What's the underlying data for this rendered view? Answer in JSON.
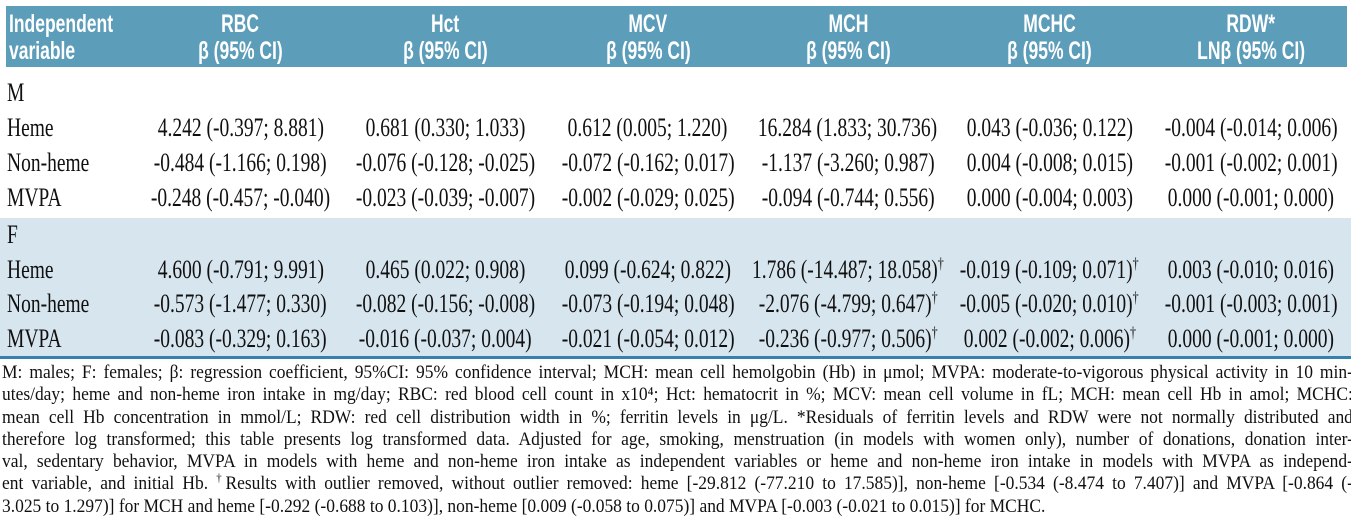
{
  "colors": {
    "header_bg": "#5C9DBA",
    "header_text": "#FFFFFF",
    "female_section_bg": "#D7E5EE",
    "rule": "#3781AD",
    "body_text": "#101010"
  },
  "header": {
    "col0_line1": "Independent",
    "col0_line2": "variable",
    "columns": [
      {
        "line1": "RBC",
        "line2": "β (95% CI)"
      },
      {
        "line1": "Hct",
        "line2": "β (95% CI)"
      },
      {
        "line1": "MCV",
        "line2": "β (95% CI)"
      },
      {
        "line1": "MCH",
        "line2": "β (95% CI)"
      },
      {
        "line1": "MCHC",
        "line2": "β (95% CI)"
      },
      {
        "line1": "RDW*",
        "line2": "LNβ (95% CI)"
      }
    ]
  },
  "sections": [
    {
      "label": "M",
      "rows": [
        {
          "label": "Heme",
          "values": [
            "4.242 (-0.397; 8.881)",
            "0.681 (0.330; 1.033)",
            "0.612 (0.005; 1.220)",
            "16.284 (1.833; 30.736)",
            "0.043 (-0.036; 0.122)",
            "-0.004 (-0.014; 0.006)"
          ]
        },
        {
          "label": "Non-heme",
          "values": [
            "-0.484 (-1.166; 0.198)",
            "-0.076 (-0.128; -0.025)",
            "-0.072 (-0.162; 0.017)",
            "-1.137 (-3.260; 0.987)",
            "0.004 (-0.008; 0.015)",
            "-0.001 (-0.002; 0.001)"
          ]
        },
        {
          "label": "MVPA",
          "values": [
            "-0.248 (-0.457; -0.040)",
            "-0.023 (-0.039; -0.007)",
            "-0.002 (-0.029; 0.025)",
            "-0.094 (-0.744; 0.556)",
            "0.000 (-0.004; 0.003)",
            "0.000 (-0.001; 0.000)"
          ]
        }
      ]
    },
    {
      "label": "F",
      "rows": [
        {
          "label": "Heme",
          "values": [
            "4.600 (-0.791; 9.991)",
            "0.465 (0.022; 0.908)",
            "0.099 (-0.624; 0.822)",
            "1.786 (-14.487; 18.058)†",
            "-0.019 (-0.109; 0.071)†",
            "0.003 (-0.010; 0.016)"
          ]
        },
        {
          "label": "Non-heme",
          "values": [
            "-0.573 (-1.477; 0.330)",
            "-0.082 (-0.156; -0.008)",
            "-0.073 (-0.194; 0.048)",
            "-2.076 (-4.799; 0.647)†",
            "-0.005 (-0.020; 0.010)†",
            "-0.001 (-0.003; 0.001)"
          ]
        },
        {
          "label": "MVPA",
          "values": [
            "-0.083 (-0.329; 0.163)",
            "-0.016 (-0.037; 0.004)",
            "-0.021 (-0.054; 0.012)",
            "-0.236 (-0.977; 0.506)†",
            "0.002 (-0.002; 0.006)†",
            "0.000 (-0.001; 0.000)"
          ]
        }
      ]
    }
  ],
  "footnote": {
    "lines": [
      "M: males; F: females; β: regression coefficient, 95%CI: 95% confidence interval; MCH: mean cell hemolgobin (Hb) in μmol; MVPA: moderate-to-vigorous physical activity in 10 min-",
      "utes/day; heme and non-heme iron intake in mg/day; RBC: red blood cell count in x10⁴; Hct: hematocrit in %; MCV: mean cell volume in fL; MCH: mean cell Hb in amol; MCHC:",
      "mean cell Hb concentration in mmol/L; RDW: red cell distribution width in %; ferritin levels in μg/L. *Residuals of ferritin levels and RDW were not normally distributed and",
      "therefore log transformed; this table presents log transformed data. Adjusted for age, smoking, menstruation (in models with women only), number of donations, donation inter-",
      "val, sedentary behavior, MVPA in models with heme and non-heme iron intake as independent variables or heme and non-heme iron intake in models with MVPA as independ-",
      "ent variable, and initial Hb. †Results with outlier removed, without outlier removed: heme [-29.812 (-77.210 to 17.585)], non-heme [-0.534 (-8.474 to 7.407)] and MVPA [-0.864 (-",
      "3.025 to 1.297)] for MCH and heme [-0.292 (-0.688 to 0.103)], non-heme [0.009 (-0.058 to 0.075)] and MVPA [-0.003 (-0.021 to 0.015)] for MCHC."
    ]
  }
}
